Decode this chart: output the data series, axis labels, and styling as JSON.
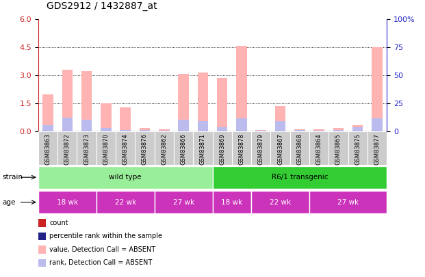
{
  "title": "GDS2912 / 1432887_at",
  "samples": [
    "GSM83863",
    "GSM83872",
    "GSM83873",
    "GSM83870",
    "GSM83874",
    "GSM83876",
    "GSM83862",
    "GSM83866",
    "GSM83871",
    "GSM83869",
    "GSM83878",
    "GSM83879",
    "GSM83867",
    "GSM83868",
    "GSM83864",
    "GSM83865",
    "GSM83875",
    "GSM83877"
  ],
  "values": [
    2.0,
    3.3,
    3.25,
    1.5,
    1.3,
    0.2,
    0.12,
    3.1,
    3.15,
    2.85,
    4.6,
    0.07,
    1.35,
    0.12,
    0.13,
    0.2,
    0.35,
    4.5
  ],
  "ranks": [
    0.35,
    0.75,
    0.65,
    0.2,
    0.1,
    0.08,
    0.05,
    0.65,
    0.55,
    0.22,
    0.72,
    0.04,
    0.55,
    0.07,
    0.05,
    0.08,
    0.22,
    0.72
  ],
  "value_color": "#FFB3B3",
  "rank_color": "#BBBBEE",
  "left_ylim": [
    0,
    6
  ],
  "left_yticks": [
    0,
    1.5,
    3.0,
    4.5,
    6
  ],
  "right_ylim": [
    0,
    100
  ],
  "right_yticks": [
    0,
    25,
    50,
    75,
    100
  ],
  "grid_values": [
    1.5,
    3.0,
    4.5
  ],
  "strain_groups": [
    {
      "label": "wild type",
      "start": 0,
      "end": 9,
      "color": "#99EE99"
    },
    {
      "label": "R6/1 transgenic",
      "start": 9,
      "end": 18,
      "color": "#33CC33"
    }
  ],
  "age_groups": [
    {
      "label": "18 wk",
      "start": 0,
      "end": 3
    },
    {
      "label": "22 wk",
      "start": 3,
      "end": 6
    },
    {
      "label": "27 wk",
      "start": 6,
      "end": 9
    },
    {
      "label": "18 wk",
      "start": 9,
      "end": 11
    },
    {
      "label": "22 wk",
      "start": 11,
      "end": 14
    },
    {
      "label": "27 wk",
      "start": 14,
      "end": 18
    }
  ],
  "age_color": "#CC33BB",
  "legend_items": [
    {
      "label": "count",
      "color": "#CC2222"
    },
    {
      "label": "percentile rank within the sample",
      "color": "#222288"
    },
    {
      "label": "value, Detection Call = ABSENT",
      "color": "#FFB3B3"
    },
    {
      "label": "rank, Detection Call = ABSENT",
      "color": "#BBBBEE"
    }
  ],
  "bar_width": 0.55,
  "left_axis_color": "#CC2222",
  "right_axis_color": "#2222CC",
  "title_fontsize": 10,
  "sample_label_fontsize": 6,
  "grey_cell": "#CCCCCC"
}
